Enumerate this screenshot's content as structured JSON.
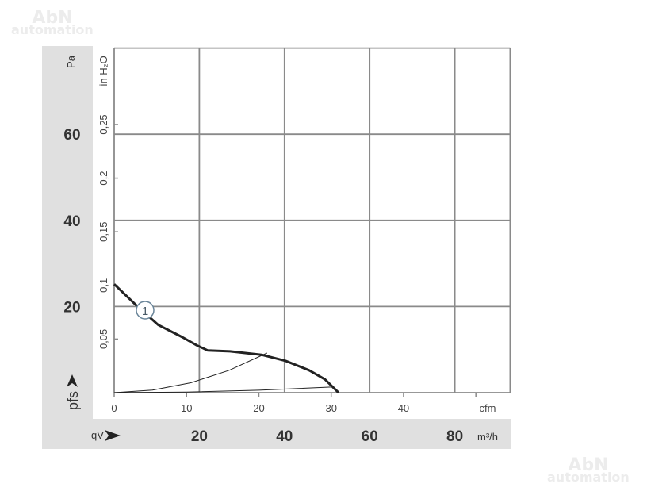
{
  "watermark": {
    "line1": "AbN",
    "line2": "automation"
  },
  "chart_data": {
    "type": "line",
    "title": "",
    "x_primary": {
      "unit_label": "m³/h",
      "symbol": "qV",
      "range": [
        0,
        93
      ],
      "ticks": [
        20,
        40,
        60,
        80
      ]
    },
    "x_secondary": {
      "unit_label": "cfm",
      "ticks": [
        0,
        10,
        20,
        30,
        40
      ],
      "unlabeled_tick": 50
    },
    "y_primary": {
      "unit_label": "Pa",
      "symbol": "pfs",
      "range": [
        0,
        80
      ],
      "ticks": [
        20,
        40,
        60
      ]
    },
    "y_secondary": {
      "unit_label": "in H₂O",
      "ticks": [
        "0,05",
        "0,1",
        "0,15",
        "0,2",
        "0,25"
      ],
      "tick_values": [
        0.05,
        0.1,
        0.15,
        0.2,
        0.25
      ]
    },
    "grid": true,
    "grid_x": [
      0,
      20,
      40,
      60,
      80,
      93
    ],
    "grid_y": [
      0,
      20,
      40,
      60,
      80
    ],
    "colors": {
      "panel": "#e0e0e0",
      "grid": "#8a8a8a",
      "curve": "#222222",
      "marker": "#6a8599"
    },
    "series": [
      {
        "name": "1",
        "role": "fan curve",
        "x": [
          0,
          5.8,
          10.4,
          16,
          19.4,
          22,
          27.2,
          34.6,
          40.2,
          45.8,
          49.5,
          52.7
        ],
        "y": [
          25.2,
          19.7,
          15.7,
          12.9,
          11.0,
          9.8,
          9.6,
          8.8,
          7.4,
          5.2,
          3.1,
          0
        ]
      },
      {
        "role": "system curve",
        "x": [
          0,
          9,
          18,
          27,
          35.9
        ],
        "y": [
          0,
          0.6,
          2.3,
          5.2,
          9.2
        ]
      },
      {
        "role": "system curve",
        "x": [
          0,
          17,
          34,
          51
        ],
        "y": [
          0,
          0.15,
          0.57,
          1.3
        ]
      }
    ],
    "marker_label": "1"
  }
}
